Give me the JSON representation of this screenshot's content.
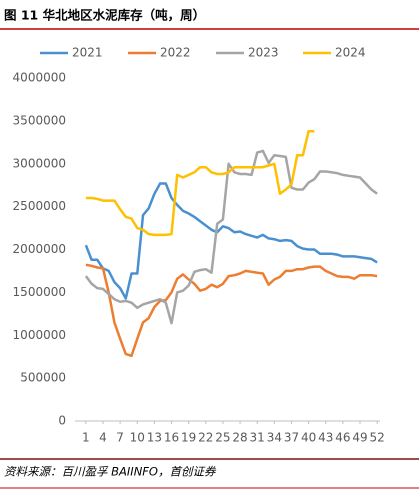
{
  "chart_data": {
    "type": "line",
    "title": "图 11 华北地区水泥库存（吨，周）",
    "source": "资料来源：百川盈孚 BAIINFO，首创证券",
    "x": [
      1,
      2,
      3,
      4,
      5,
      6,
      7,
      8,
      9,
      10,
      11,
      12,
      13,
      14,
      15,
      16,
      17,
      18,
      19,
      20,
      21,
      22,
      23,
      24,
      25,
      26,
      27,
      28,
      29,
      30,
      31,
      32,
      33,
      34,
      35,
      36,
      37,
      38,
      39,
      40,
      41,
      42,
      43,
      44,
      45,
      46,
      47,
      48,
      49,
      50,
      51,
      52
    ],
    "xlim": [
      0.5,
      52.5
    ],
    "xticks": [
      1,
      4,
      7,
      10,
      13,
      16,
      19,
      22,
      25,
      28,
      31,
      34,
      37,
      40,
      43,
      46,
      49,
      52
    ],
    "ylim": [
      0,
      4000000
    ],
    "yticks": [
      0,
      500000,
      1000000,
      1500000,
      2000000,
      2500000,
      3000000,
      3500000,
      4000000
    ],
    "grid": false,
    "legend": "top",
    "series": [
      {
        "name": "2021",
        "color": "#4a90d0",
        "values": [
          2050000,
          1880000,
          1880000,
          1780000,
          1750000,
          1620000,
          1550000,
          1430000,
          1720000,
          1720000,
          2400000,
          2480000,
          2650000,
          2770000,
          2770000,
          2600000,
          2520000,
          2450000,
          2420000,
          2380000,
          2330000,
          2280000,
          2230000,
          2200000,
          2270000,
          2250000,
          2200000,
          2210000,
          2180000,
          2160000,
          2140000,
          2170000,
          2130000,
          2120000,
          2100000,
          2110000,
          2100000,
          2040000,
          2010000,
          2000000,
          2000000,
          1950000,
          1950000,
          1950000,
          1940000,
          1920000,
          1920000,
          1920000,
          1910000,
          1900000,
          1890000,
          1850000
        ]
      },
      {
        "name": "2022",
        "color": "#ed7d31",
        "values": [
          1820000,
          1810000,
          1790000,
          1780000,
          1500000,
          1150000,
          960000,
          780000,
          760000,
          960000,
          1150000,
          1200000,
          1330000,
          1400000,
          1410000,
          1500000,
          1660000,
          1710000,
          1650000,
          1600000,
          1520000,
          1540000,
          1590000,
          1560000,
          1600000,
          1690000,
          1700000,
          1720000,
          1750000,
          1740000,
          1730000,
          1720000,
          1590000,
          1650000,
          1680000,
          1750000,
          1750000,
          1770000,
          1770000,
          1790000,
          1800000,
          1800000,
          1750000,
          1720000,
          1690000,
          1680000,
          1680000,
          1660000,
          1700000,
          1700000,
          1700000,
          1690000
        ]
      },
      {
        "name": "2023",
        "color": "#a5a5a5",
        "values": [
          1690000,
          1600000,
          1550000,
          1540000,
          1480000,
          1420000,
          1390000,
          1400000,
          1380000,
          1320000,
          1360000,
          1380000,
          1400000,
          1420000,
          1380000,
          1140000,
          1500000,
          1520000,
          1580000,
          1740000,
          1760000,
          1770000,
          1730000,
          2300000,
          2350000,
          3000000,
          2900000,
          2880000,
          2880000,
          2870000,
          3130000,
          3150000,
          3010000,
          3100000,
          3090000,
          3080000,
          2720000,
          2700000,
          2700000,
          2780000,
          2820000,
          2910000,
          2910000,
          2900000,
          2890000,
          2870000,
          2860000,
          2850000,
          2840000,
          2770000,
          2700000,
          2650000
        ]
      },
      {
        "name": "2024",
        "color": "#ffc000",
        "values": [
          2600000,
          2600000,
          2590000,
          2570000,
          2570000,
          2570000,
          2470000,
          2380000,
          2360000,
          2250000,
          2230000,
          2180000,
          2170000,
          2170000,
          2170000,
          2180000,
          2870000,
          2840000,
          2870000,
          2900000,
          2960000,
          2960000,
          2900000,
          2880000,
          2880000,
          2900000,
          2960000,
          2960000,
          2960000,
          2960000,
          2960000,
          2960000,
          2980000,
          3000000,
          2650000,
          2700000,
          2760000,
          3100000,
          3100000,
          3380000,
          3380000,
          null,
          null,
          null,
          null,
          null,
          null,
          null,
          null,
          null,
          null,
          null
        ]
      }
    ]
  }
}
